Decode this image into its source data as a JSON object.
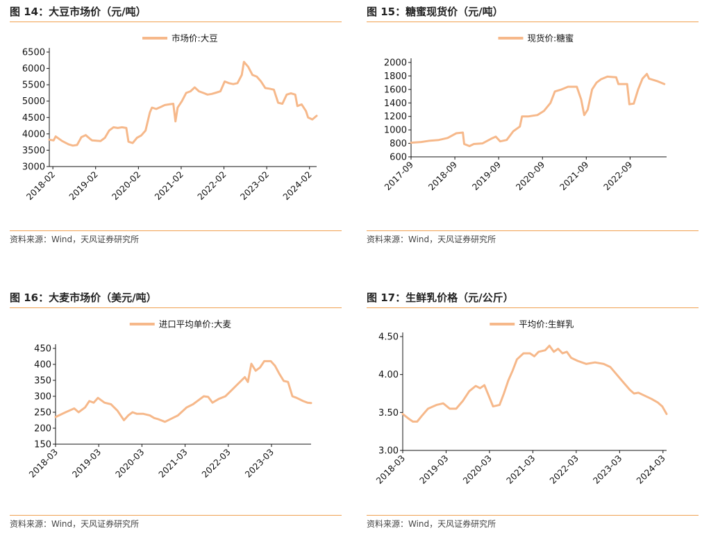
{
  "colors": {
    "line": "#f6b88a",
    "rule": "#f0a050",
    "axis": "#111111"
  },
  "source_text": "资料来源：Wind，天风证券研究所",
  "panels": [
    {
      "id": "p14",
      "title": "图 14：大豆市场价（元/吨）",
      "chart_data": {
        "type": "line",
        "legend": "市场价:大豆",
        "y_ticks": [
          3000,
          3500,
          4000,
          4500,
          5000,
          5500,
          6000,
          6500
        ],
        "ylim": [
          3000,
          6500
        ],
        "x_tick_labels": [
          "2018-02",
          "2019-02",
          "2020-02",
          "2021-02",
          "2022-02",
          "2023-02",
          "2024-02"
        ],
        "x_range": [
          2018.0,
          2024.25
        ],
        "series": [
          {
            "points": [
              [
                2018.0,
                3820
              ],
              [
                2018.1,
                3800
              ],
              [
                2018.15,
                3920
              ],
              [
                2018.3,
                3780
              ],
              [
                2018.45,
                3680
              ],
              [
                2018.55,
                3640
              ],
              [
                2018.65,
                3660
              ],
              [
                2018.75,
                3900
              ],
              [
                2018.85,
                3960
              ],
              [
                2018.95,
                3850
              ],
              [
                2019.0,
                3800
              ],
              [
                2019.2,
                3780
              ],
              [
                2019.3,
                3880
              ],
              [
                2019.4,
                4100
              ],
              [
                2019.5,
                4200
              ],
              [
                2019.6,
                4180
              ],
              [
                2019.7,
                4200
              ],
              [
                2019.8,
                4180
              ],
              [
                2019.85,
                3760
              ],
              [
                2019.95,
                3720
              ],
              [
                2020.05,
                3880
              ],
              [
                2020.15,
                3950
              ],
              [
                2020.25,
                4100
              ],
              [
                2020.35,
                4650
              ],
              [
                2020.4,
                4800
              ],
              [
                2020.5,
                4760
              ],
              [
                2020.6,
                4820
              ],
              [
                2020.7,
                4880
              ],
              [
                2020.8,
                4900
              ],
              [
                2020.9,
                4920
              ],
              [
                2020.95,
                4380
              ],
              [
                2021.0,
                4800
              ],
              [
                2021.1,
                5000
              ],
              [
                2021.2,
                5250
              ],
              [
                2021.3,
                5300
              ],
              [
                2021.4,
                5420
              ],
              [
                2021.5,
                5300
              ],
              [
                2021.6,
                5250
              ],
              [
                2021.7,
                5200
              ],
              [
                2021.8,
                5220
              ],
              [
                2021.9,
                5260
              ],
              [
                2022.0,
                5300
              ],
              [
                2022.1,
                5600
              ],
              [
                2022.2,
                5550
              ],
              [
                2022.3,
                5520
              ],
              [
                2022.4,
                5550
              ],
              [
                2022.5,
                5800
              ],
              [
                2022.55,
                6200
              ],
              [
                2022.65,
                6050
              ],
              [
                2022.75,
                5800
              ],
              [
                2022.85,
                5750
              ],
              [
                2022.95,
                5600
              ],
              [
                2023.05,
                5400
              ],
              [
                2023.15,
                5380
              ],
              [
                2023.25,
                5350
              ],
              [
                2023.35,
                4950
              ],
              [
                2023.45,
                4920
              ],
              [
                2023.55,
                5200
              ],
              [
                2023.65,
                5240
              ],
              [
                2023.75,
                5200
              ],
              [
                2023.8,
                4850
              ],
              [
                2023.9,
                4900
              ],
              [
                2024.0,
                4700
              ],
              [
                2024.05,
                4500
              ],
              [
                2024.15,
                4440
              ],
              [
                2024.25,
                4550
              ]
            ]
          }
        ]
      }
    },
    {
      "id": "p15",
      "title": "图 15：糖蜜现货价（元/吨）",
      "chart_data": {
        "type": "line",
        "legend": "现货价:糖蜜",
        "y_ticks": [
          600,
          800,
          1000,
          1200,
          1400,
          1600,
          1800,
          2000
        ],
        "ylim": [
          600,
          2000
        ],
        "x_tick_labels": [
          "2017-09",
          "2018-09",
          "2019-09",
          "2020-09",
          "2021-09",
          "2022-09"
        ],
        "x_range": [
          2017.667,
          2023.5
        ],
        "series": [
          {
            "points": [
              [
                2017.667,
                810
              ],
              [
                2017.9,
                820
              ],
              [
                2018.1,
                840
              ],
              [
                2018.3,
                850
              ],
              [
                2018.5,
                880
              ],
              [
                2018.7,
                950
              ],
              [
                2018.85,
                960
              ],
              [
                2018.88,
                790
              ],
              [
                2019.0,
                760
              ],
              [
                2019.1,
                790
              ],
              [
                2019.3,
                800
              ],
              [
                2019.5,
                870
              ],
              [
                2019.6,
                900
              ],
              [
                2019.7,
                830
              ],
              [
                2019.85,
                850
              ],
              [
                2020.0,
                980
              ],
              [
                2020.15,
                1050
              ],
              [
                2020.2,
                1200
              ],
              [
                2020.35,
                1200
              ],
              [
                2020.45,
                1210
              ],
              [
                2020.55,
                1220
              ],
              [
                2020.7,
                1280
              ],
              [
                2020.85,
                1400
              ],
              [
                2020.95,
                1570
              ],
              [
                2021.1,
                1600
              ],
              [
                2021.25,
                1640
              ],
              [
                2021.35,
                1640
              ],
              [
                2021.45,
                1640
              ],
              [
                2021.55,
                1450
              ],
              [
                2021.62,
                1220
              ],
              [
                2021.7,
                1300
              ],
              [
                2021.8,
                1600
              ],
              [
                2021.9,
                1700
              ],
              [
                2022.0,
                1750
              ],
              [
                2022.15,
                1790
              ],
              [
                2022.35,
                1780
              ],
              [
                2022.4,
                1680
              ],
              [
                2022.6,
                1680
              ],
              [
                2022.65,
                1380
              ],
              [
                2022.75,
                1390
              ],
              [
                2022.85,
                1600
              ],
              [
                2022.95,
                1760
              ],
              [
                2023.05,
                1830
              ],
              [
                2023.1,
                1760
              ],
              [
                2023.3,
                1720
              ],
              [
                2023.45,
                1680
              ]
            ]
          }
        ]
      }
    },
    {
      "id": "p16",
      "title": "图 16：大麦市场价（美元/吨）",
      "chart_data": {
        "type": "line",
        "legend": "进口平均单价:大麦",
        "y_ticks": [
          150,
          200,
          250,
          300,
          350,
          400,
          450
        ],
        "ylim": [
          150,
          450
        ],
        "x_tick_labels": [
          "2018-03",
          "2019-03",
          "2020-03",
          "2021-03",
          "2022-03",
          "2023-03"
        ],
        "x_range": [
          2018.167,
          2024.083
        ],
        "series": [
          {
            "points": [
              [
                2018.167,
                235
              ],
              [
                2018.4,
                250
              ],
              [
                2018.6,
                262
              ],
              [
                2018.7,
                250
              ],
              [
                2018.85,
                265
              ],
              [
                2018.95,
                285
              ],
              [
                2019.05,
                280
              ],
              [
                2019.15,
                295
              ],
              [
                2019.3,
                280
              ],
              [
                2019.45,
                275
              ],
              [
                2019.6,
                255
              ],
              [
                2019.75,
                225
              ],
              [
                2019.85,
                240
              ],
              [
                2019.95,
                250
              ],
              [
                2020.05,
                245
              ],
              [
                2020.2,
                245
              ],
              [
                2020.35,
                240
              ],
              [
                2020.45,
                232
              ],
              [
                2020.55,
                228
              ],
              [
                2020.7,
                220
              ],
              [
                2020.85,
                230
              ],
              [
                2021.0,
                240
              ],
              [
                2021.2,
                265
              ],
              [
                2021.35,
                275
              ],
              [
                2021.5,
                290
              ],
              [
                2021.6,
                300
              ],
              [
                2021.7,
                298
              ],
              [
                2021.8,
                280
              ],
              [
                2021.95,
                292
              ],
              [
                2022.1,
                300
              ],
              [
                2022.25,
                320
              ],
              [
                2022.4,
                340
              ],
              [
                2022.55,
                360
              ],
              [
                2022.62,
                345
              ],
              [
                2022.7,
                402
              ],
              [
                2022.8,
                380
              ],
              [
                2022.9,
                390
              ],
              [
                2023.0,
                410
              ],
              [
                2023.15,
                410
              ],
              [
                2023.25,
                395
              ],
              [
                2023.35,
                370
              ],
              [
                2023.45,
                348
              ],
              [
                2023.55,
                345
              ],
              [
                2023.65,
                300
              ],
              [
                2023.75,
                295
              ],
              [
                2023.9,
                285
              ],
              [
                2024.0,
                280
              ],
              [
                2024.083,
                279
              ]
            ]
          }
        ]
      }
    },
    {
      "id": "p17",
      "title": "图 17：生鲜乳价格（元/公斤）",
      "chart_data": {
        "type": "line",
        "legend": "平均价:生鲜乳",
        "y_ticks": [
          "3.00",
          "3.50",
          "4.00",
          "4.50"
        ],
        "ylim": [
          3.0,
          4.5
        ],
        "x_tick_labels": [
          "2018-03",
          "2019-03",
          "2020-03",
          "2021-03",
          "2022-03",
          "2023-03",
          "2024-03"
        ],
        "x_range": [
          2018.167,
          2024.25
        ],
        "series": [
          {
            "points": [
              [
                2018.167,
                3.48
              ],
              [
                2018.3,
                3.42
              ],
              [
                2018.4,
                3.38
              ],
              [
                2018.5,
                3.38
              ],
              [
                2018.6,
                3.45
              ],
              [
                2018.75,
                3.55
              ],
              [
                2018.95,
                3.6
              ],
              [
                2019.1,
                3.62
              ],
              [
                2019.25,
                3.55
              ],
              [
                2019.4,
                3.55
              ],
              [
                2019.55,
                3.65
              ],
              [
                2019.7,
                3.78
              ],
              [
                2019.85,
                3.85
              ],
              [
                2019.95,
                3.82
              ],
              [
                2020.05,
                3.86
              ],
              [
                2020.15,
                3.72
              ],
              [
                2020.25,
                3.58
              ],
              [
                2020.4,
                3.6
              ],
              [
                2020.5,
                3.75
              ],
              [
                2020.6,
                3.92
              ],
              [
                2020.7,
                4.05
              ],
              [
                2020.8,
                4.2
              ],
              [
                2020.95,
                4.28
              ],
              [
                2021.1,
                4.28
              ],
              [
                2021.2,
                4.24
              ],
              [
                2021.3,
                4.3
              ],
              [
                2021.45,
                4.32
              ],
              [
                2021.55,
                4.38
              ],
              [
                2021.65,
                4.3
              ],
              [
                2021.75,
                4.34
              ],
              [
                2021.85,
                4.28
              ],
              [
                2021.95,
                4.3
              ],
              [
                2022.05,
                4.22
              ],
              [
                2022.2,
                4.18
              ],
              [
                2022.4,
                4.14
              ],
              [
                2022.6,
                4.16
              ],
              [
                2022.8,
                4.14
              ],
              [
                2022.95,
                4.1
              ],
              [
                2023.1,
                4.0
              ],
              [
                2023.25,
                3.9
              ],
              [
                2023.4,
                3.8
              ],
              [
                2023.5,
                3.75
              ],
              [
                2023.6,
                3.76
              ],
              [
                2023.75,
                3.72
              ],
              [
                2023.9,
                3.68
              ],
              [
                2024.05,
                3.63
              ],
              [
                2024.15,
                3.58
              ],
              [
                2024.25,
                3.48
              ]
            ]
          }
        ]
      }
    }
  ]
}
